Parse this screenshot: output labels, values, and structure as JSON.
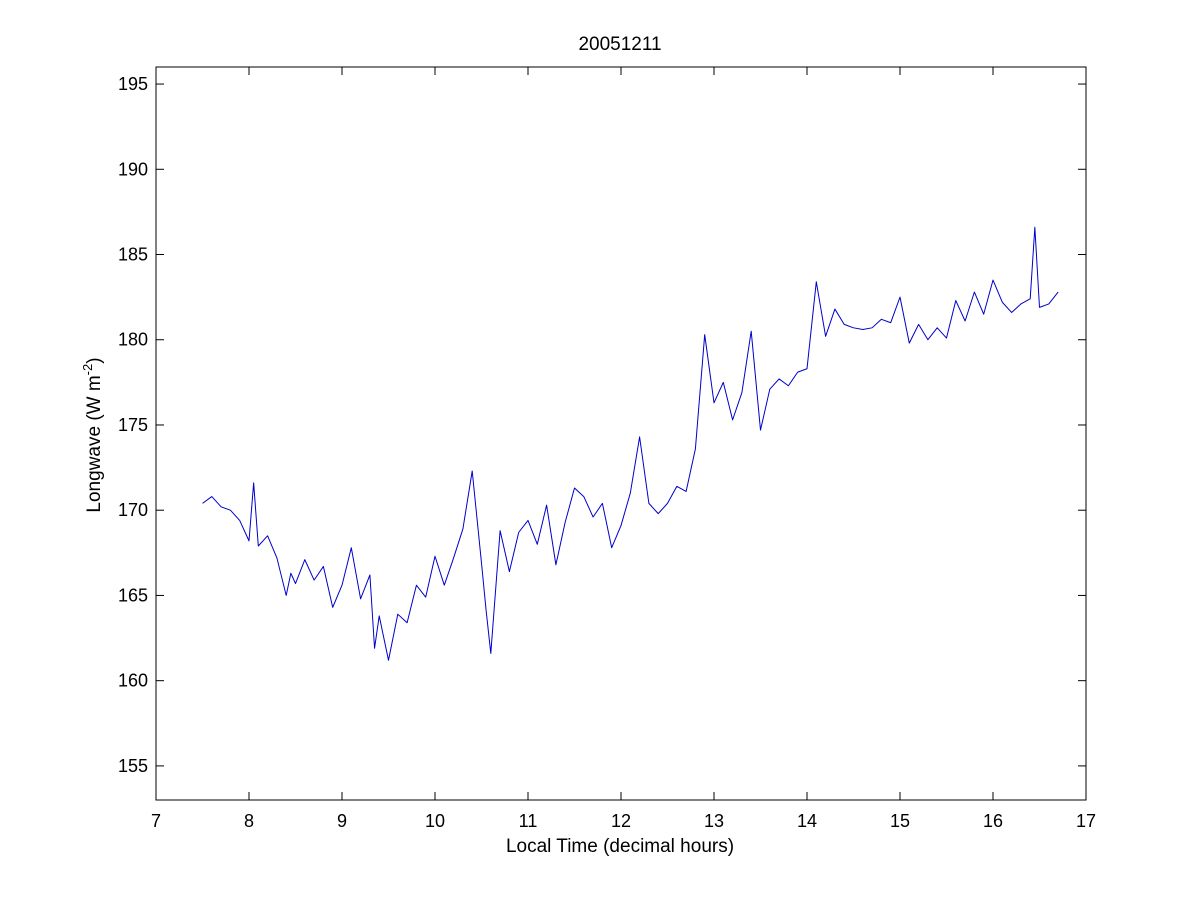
{
  "chart_data": {
    "type": "line",
    "title": "20051211",
    "xlabel": "Local Time (decimal hours)",
    "ylabel": {
      "main": "Longwave (W m",
      "superscript": "-2",
      "close": ")"
    },
    "xlim": [
      7,
      17
    ],
    "ylim": [
      153,
      196
    ],
    "xticks": [
      7,
      8,
      9,
      10,
      11,
      12,
      13,
      14,
      15,
      16,
      17
    ],
    "yticks": [
      155,
      160,
      165,
      170,
      175,
      180,
      185,
      190,
      195
    ],
    "grid": false,
    "legend": "none",
    "series": [
      {
        "color": "#0000cc",
        "x": [
          7.5,
          7.6,
          7.7,
          7.8,
          7.9,
          8.0,
          8.05,
          8.1,
          8.2,
          8.3,
          8.4,
          8.45,
          8.5,
          8.6,
          8.7,
          8.8,
          8.9,
          9.0,
          9.1,
          9.2,
          9.3,
          9.35,
          9.4,
          9.5,
          9.6,
          9.7,
          9.8,
          9.9,
          10.0,
          10.1,
          10.2,
          10.3,
          10.4,
          10.5,
          10.55,
          10.6,
          10.7,
          10.8,
          10.9,
          11.0,
          11.1,
          11.2,
          11.3,
          11.4,
          11.5,
          11.6,
          11.7,
          11.8,
          11.9,
          12.0,
          12.1,
          12.2,
          12.3,
          12.4,
          12.5,
          12.6,
          12.7,
          12.8,
          12.9,
          13.0,
          13.1,
          13.2,
          13.3,
          13.4,
          13.5,
          13.6,
          13.7,
          13.8,
          13.9,
          14.0,
          14.1,
          14.2,
          14.3,
          14.4,
          14.5,
          14.6,
          14.7,
          14.8,
          14.9,
          15.0,
          15.1,
          15.2,
          15.3,
          15.4,
          15.5,
          15.6,
          15.7,
          15.8,
          15.9,
          16.0,
          16.1,
          16.2,
          16.3,
          16.4,
          16.45,
          16.5,
          16.6,
          16.7
        ],
        "y": [
          170.4,
          170.8,
          170.2,
          170.0,
          169.4,
          168.2,
          171.6,
          167.9,
          168.5,
          167.2,
          165.0,
          166.3,
          165.7,
          167.1,
          165.9,
          166.7,
          164.3,
          165.6,
          167.8,
          164.8,
          166.2,
          161.9,
          163.8,
          161.2,
          163.9,
          163.4,
          165.6,
          164.9,
          167.3,
          165.6,
          167.2,
          168.9,
          172.3,
          166.9,
          164.1,
          161.6,
          168.8,
          166.4,
          168.7,
          169.4,
          168.0,
          170.3,
          166.8,
          169.3,
          171.3,
          170.8,
          169.6,
          170.4,
          167.8,
          169.1,
          171.0,
          174.3,
          170.4,
          169.8,
          170.4,
          171.4,
          171.1,
          173.6,
          180.3,
          176.3,
          177.5,
          175.3,
          176.9,
          180.5,
          174.7,
          177.1,
          177.7,
          177.3,
          178.1,
          178.3,
          183.4,
          180.2,
          181.8,
          180.9,
          180.7,
          180.6,
          180.7,
          181.2,
          181.0,
          182.5,
          179.8,
          180.9,
          180.0,
          180.7,
          180.1,
          182.3,
          181.1,
          182.8,
          181.5,
          183.5,
          182.2,
          181.6,
          182.1,
          182.4,
          186.6,
          181.9,
          182.1,
          182.8
        ]
      }
    ]
  }
}
